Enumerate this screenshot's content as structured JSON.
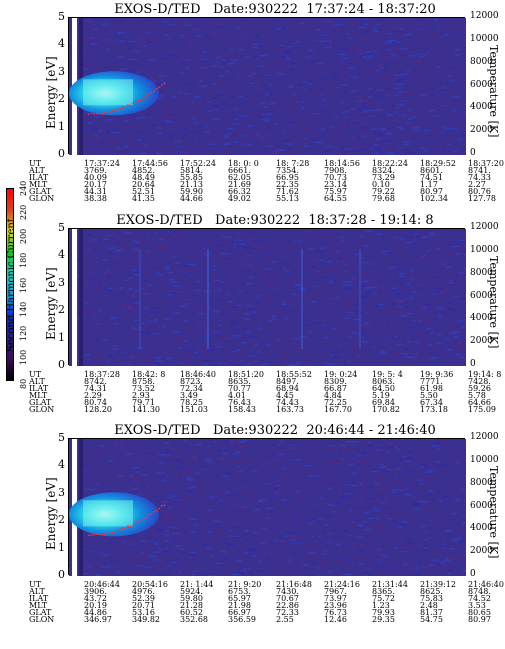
{
  "colorbar": {
    "label": "Second Harmonic Current",
    "ticks": [
      "80",
      "100",
      "120",
      "140",
      "160",
      "180",
      "200",
      "220",
      "240"
    ],
    "colors": [
      "#000000",
      "#3a0c5a",
      "#2a1a9a",
      "#0a2ad8",
      "#0aa0e0",
      "#10d8c0",
      "#10c020",
      "#e0e000",
      "#e04020",
      "#ff0000"
    ]
  },
  "chart_data": [
    {
      "type": "heatmap",
      "title": "EXOS-D/TED   Date:930222  17:37:24 - 18:37:20",
      "ylabel": "Energy [eV]",
      "y2label": "Temperature [K]",
      "ylim": [
        0,
        5
      ],
      "y2lim": [
        0,
        12000
      ],
      "yticks": [
        "0",
        "1",
        "2",
        "3",
        "4",
        "5"
      ],
      "y2ticks": [
        "0",
        "2000",
        "4000",
        "6000",
        "8000",
        "10000",
        "12000"
      ],
      "feature": "bright band near 2-2.5 eV at start of interval with temperature trace near 4000 K",
      "table": [
        {
          "label": "UT",
          "values": [
            "17:37:24",
            "17:44:56",
            "17:52:24",
            "18: 0: 0",
            "18: 7:28",
            "18:14:56",
            "18:22:24",
            "18:29:52",
            "18:37:20"
          ]
        },
        {
          "label": "ALT",
          "values": [
            "3769.",
            "4852.",
            "5814.",
            "6661.",
            "7354.",
            "7908.",
            "8324.",
            "8601.",
            "8741."
          ]
        },
        {
          "label": "ILAT",
          "values": [
            "40.09",
            "48.49",
            "55.85",
            "62.05",
            "66.95",
            "70.73",
            "73.29",
            "74.51",
            "74.33"
          ]
        },
        {
          "label": "MLT",
          "values": [
            "20.17",
            "20.64",
            "21.13",
            "21.69",
            "22.35",
            "23.14",
            "0.10",
            "1.17",
            "2.27"
          ]
        },
        {
          "label": "GLAT",
          "values": [
            "44.31",
            "52.51",
            "59.90",
            "66.32",
            "71.62",
            "75.97",
            "79.22",
            "80.97",
            "80.76"
          ]
        },
        {
          "label": "GLON",
          "values": [
            "38.38",
            "41.35",
            "44.66",
            "49.02",
            "55.13",
            "64.55",
            "79.68",
            "102.34",
            "127.78"
          ]
        }
      ]
    },
    {
      "type": "heatmap",
      "title": "EXOS-D/TED   Date:930222  18:37:28 - 19:14: 8",
      "ylabel": "Energy [eV]",
      "y2label": "Temperature [K]",
      "ylim": [
        0,
        5
      ],
      "y2lim": [
        0,
        12000
      ],
      "yticks": [
        "0",
        "1",
        "2",
        "3",
        "4",
        "5"
      ],
      "y2ticks": [
        "0",
        "2000",
        "4000",
        "6000",
        "8000",
        "10000",
        "12000"
      ],
      "feature": "uniform low-level background",
      "table": [
        {
          "label": "UT",
          "values": [
            "18:37:28",
            "18:42: 8",
            "18:46:40",
            "18:51:20",
            "18:55:52",
            "19: 0:24",
            "19: 5: 4",
            "19: 9:36",
            "19:14: 8"
          ]
        },
        {
          "label": "ALT",
          "values": [
            "8742.",
            "8758.",
            "8723.",
            "8635.",
            "8497.",
            "8309.",
            "8063.",
            "7771.",
            "7428."
          ]
        },
        {
          "label": "ILAT",
          "values": [
            "74.31",
            "73.52",
            "72.34",
            "70.77",
            "68.94",
            "66.87",
            "64.50",
            "61.98",
            "59.26"
          ]
        },
        {
          "label": "MLT",
          "values": [
            "2.29",
            "2.93",
            "3.49",
            "4.01",
            "4.45",
            "4.84",
            "5.19",
            "5.50",
            "5.78"
          ]
        },
        {
          "label": "GLAT",
          "values": [
            "80.74",
            "79.71",
            "78.25",
            "76.43",
            "74.43",
            "72.25",
            "69.84",
            "67.34",
            "64.66"
          ]
        },
        {
          "label": "GLON",
          "values": [
            "128.20",
            "141.30",
            "151.03",
            "158.43",
            "163.73",
            "167.70",
            "170.82",
            "173.18",
            "175.09"
          ]
        }
      ]
    },
    {
      "type": "heatmap",
      "title": "EXOS-D/TED   Date:930222  20:46:44 - 21:46:40",
      "ylabel": "Energy [eV]",
      "y2label": "Temperature [K]",
      "ylim": [
        0,
        5
      ],
      "y2lim": [
        0,
        12000
      ],
      "yticks": [
        "0",
        "1",
        "2",
        "3",
        "4",
        "5"
      ],
      "y2ticks": [
        "0",
        "2000",
        "4000",
        "6000",
        "8000",
        "10000",
        "12000"
      ],
      "feature": "bright band near 2-2.5 eV at start of interval with temperature trace near 4000 K",
      "table": [
        {
          "label": "UT",
          "values": [
            "20:46:44",
            "20:54:16",
            "21: 1:44",
            "21: 9:20",
            "21:16:48",
            "21:24:16",
            "21:31:44",
            "21:39:12",
            "21:46:40"
          ]
        },
        {
          "label": "ALT",
          "values": [
            "3906.",
            "4976.",
            "5924.",
            "6753.",
            "7430.",
            "7967.",
            "8365.",
            "8625.",
            "8748."
          ]
        },
        {
          "label": "ILAT",
          "values": [
            "43.72",
            "52.39",
            "59.80",
            "65.97",
            "70.67",
            "73.97",
            "75.72",
            "75.83",
            "74.52"
          ]
        },
        {
          "label": "MLT",
          "values": [
            "20.19",
            "20.71",
            "21.28",
            "21.98",
            "22.86",
            "23.96",
            "1.23",
            "2.48",
            "3.53"
          ]
        },
        {
          "label": "GLAT",
          "values": [
            "44.86",
            "53.16",
            "60.52",
            "66.97",
            "72.33",
            "76.73",
            "79.93",
            "81.37",
            "80.65"
          ]
        },
        {
          "label": "GLON",
          "values": [
            "346.97",
            "349.82",
            "352.68",
            "356.59",
            "2.55",
            "12.46",
            "29.35",
            "54.75",
            "80.97"
          ]
        }
      ]
    }
  ]
}
